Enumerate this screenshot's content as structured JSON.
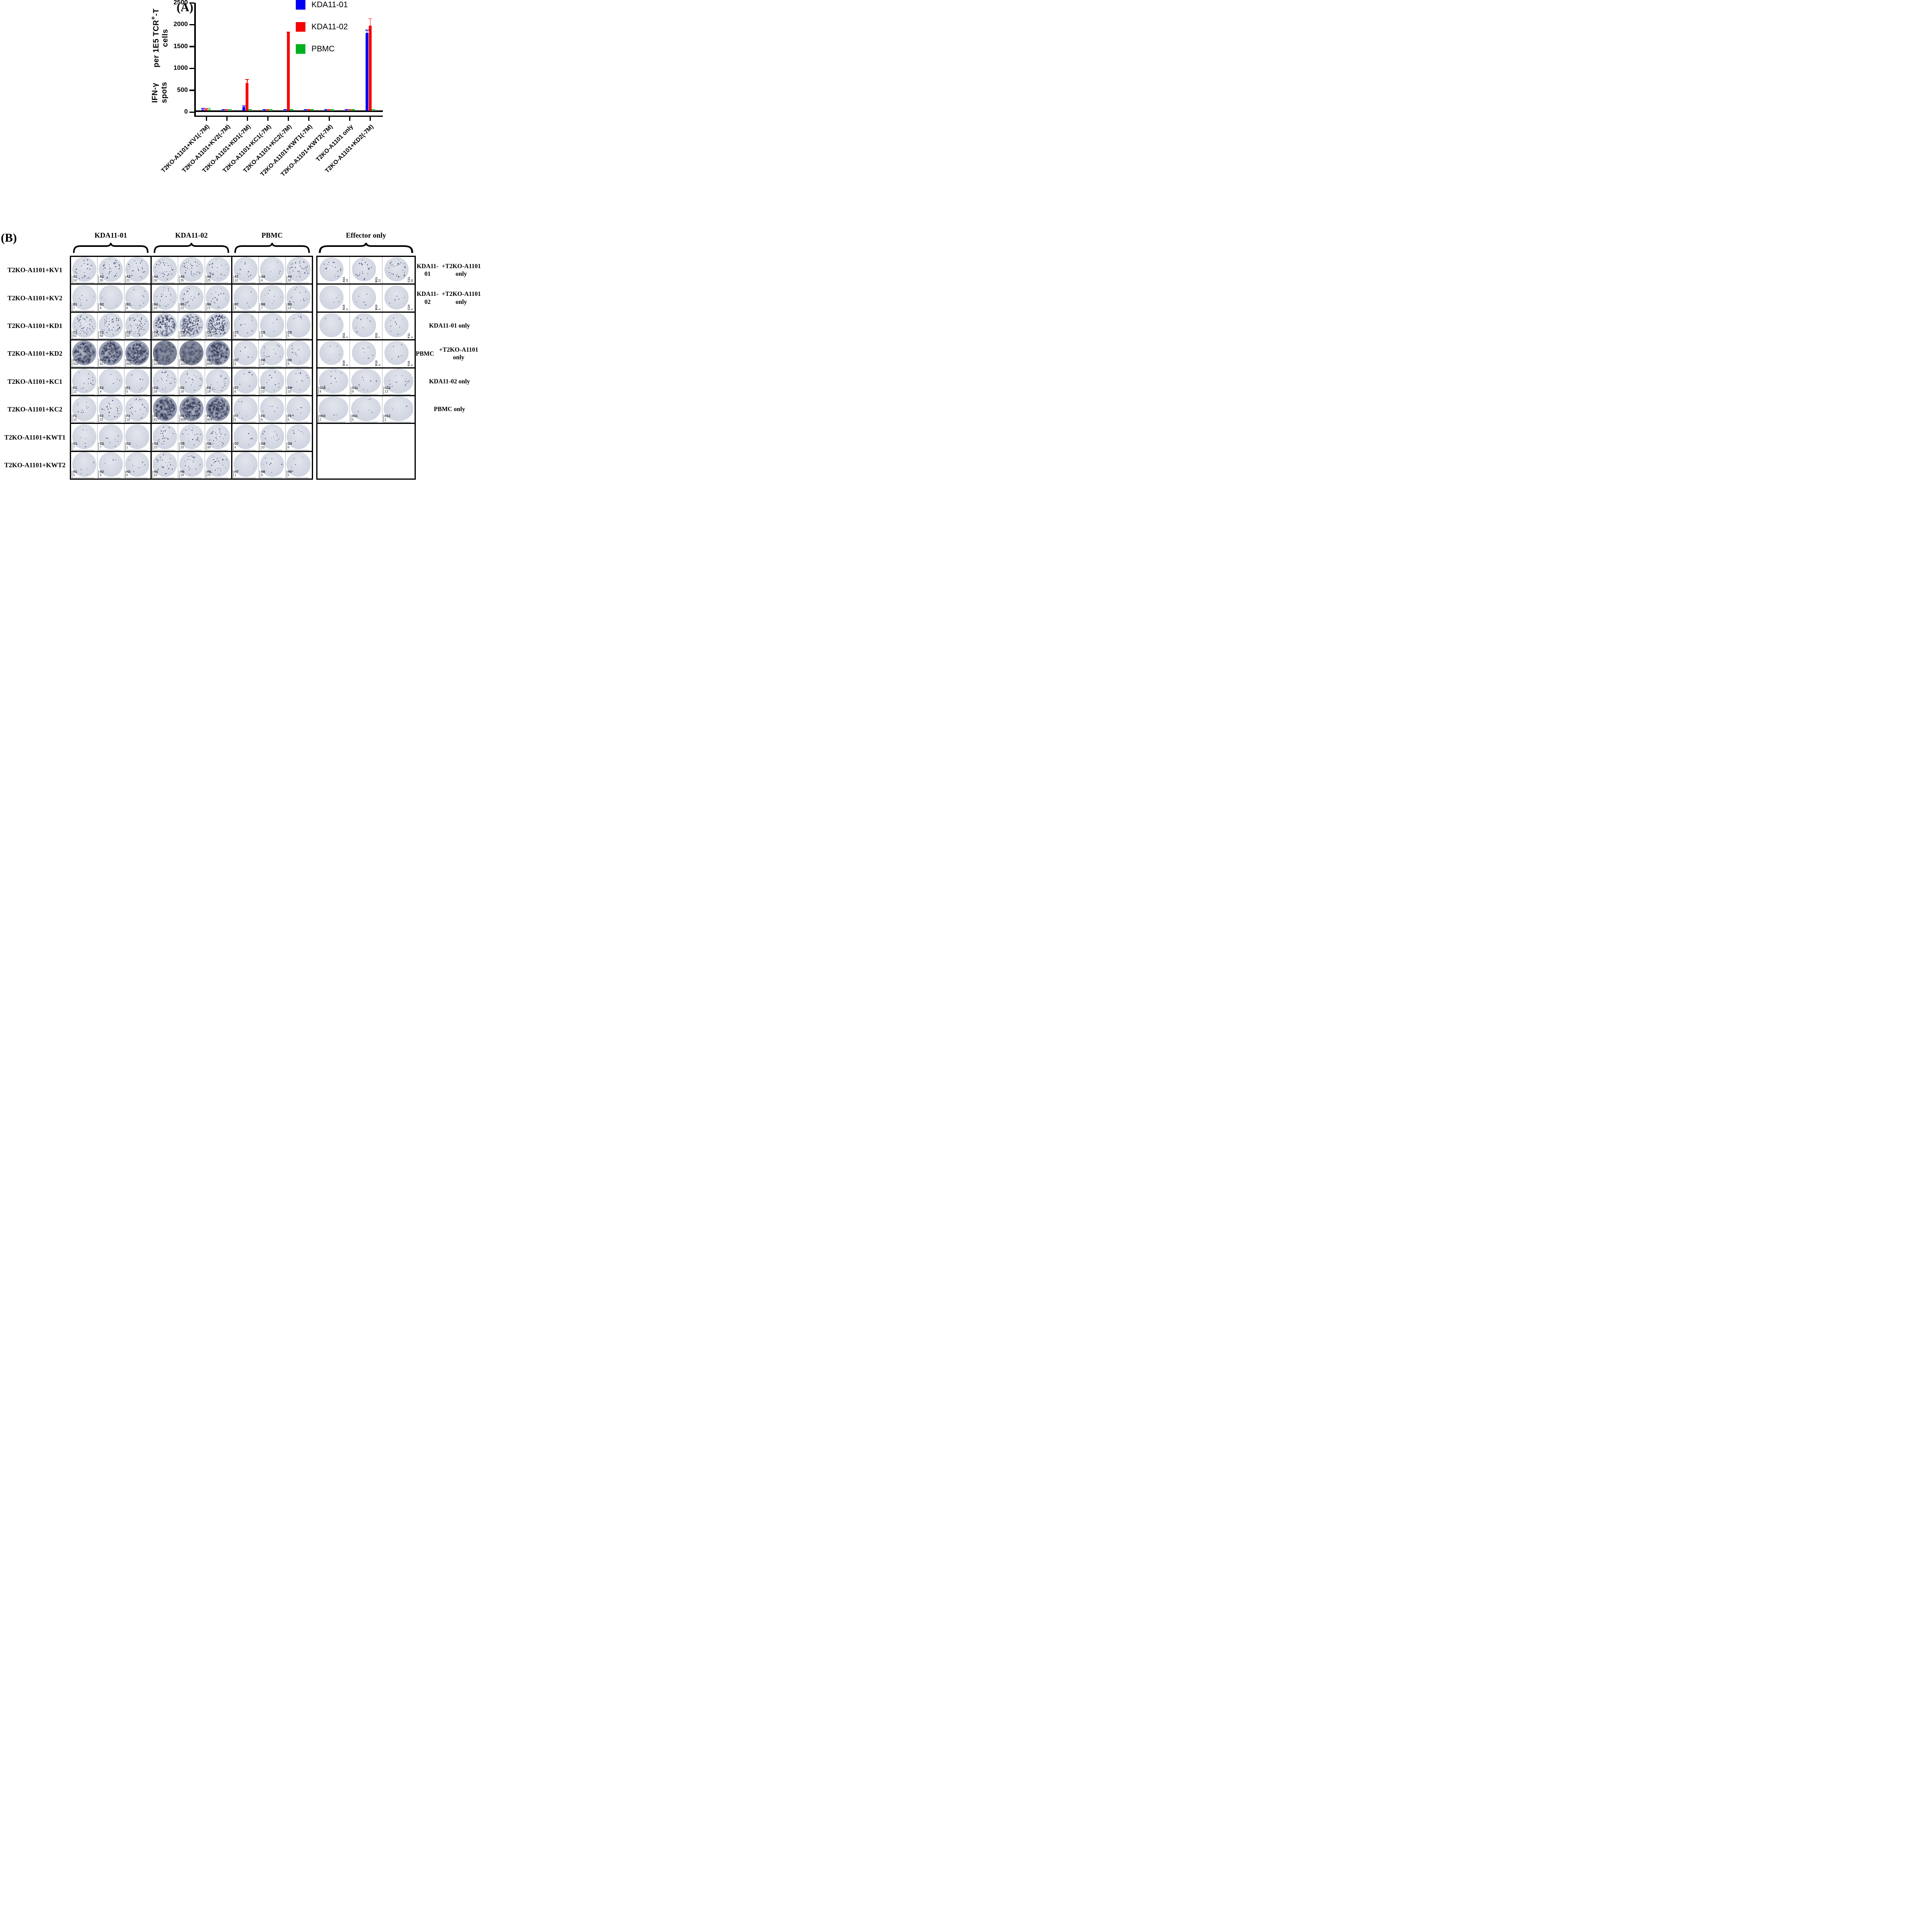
{
  "figure": {
    "panelA": {
      "label": "(A)",
      "ylabel_line1": "IFN-γ spots",
      "ylabel_line2_pre": "per 1E5 TCR",
      "ylabel_line2_sup": "+",
      "ylabel_line2_post": "-T cells",
      "chart_data": {
        "type": "bar",
        "title": "",
        "ylabel": "IFN-γ spots per 1E5 TCR+-T cells",
        "ylim": [
          0,
          2500
        ],
        "yticks": [
          0,
          500,
          1000,
          1500,
          2000,
          2500
        ],
        "grid": false,
        "legend_position": "top-right",
        "categories": [
          "T2KO-A1101+KV1(-7M)",
          "T2KO-A1101+KV2(-7M)",
          "T2KO-A1101+KD1(-7M)",
          "T2KO-A1101+KC1(-7M)",
          "T2KO-A1101+KC2(-7M)",
          "T2KO-A1101+KWT1(-7M)",
          "T2KO-A1101+KWT2(-7M)",
          "T2KO-A1101 only",
          "T2KO-A1101+KD2(-7M)"
        ],
        "series": [
          {
            "name": "KDA11-01",
            "color": "#0000f2",
            "values": [
              30,
              10,
              80,
              12,
              6,
              10,
              6,
              6,
              1780
            ],
            "errors": [
              25,
              6,
              30,
              8,
              4,
              6,
              4,
              4,
              70
            ]
          },
          {
            "name": "KDA11-02",
            "color": "#f60308",
            "values": [
              30,
              6,
              630,
              12,
              1790,
              14,
              8,
              10,
              1950
            ],
            "errors": [
              20,
              4,
              85,
              10,
              15,
              10,
              6,
              8,
              160
            ]
          },
          {
            "name": "PBMC",
            "color": "#00b01f",
            "values": [
              25,
              6,
              10,
              10,
              14,
              16,
              12,
              14,
              10
            ],
            "errors": [
              35,
              5,
              8,
              8,
              10,
              12,
              8,
              10,
              8
            ]
          }
        ]
      }
    },
    "panelB": {
      "label": "(B)",
      "column_groups": [
        "KDA11-01",
        "KDA11-02",
        "PBMC",
        "Effector only"
      ],
      "rows": [
        {
          "label": "T2KO-A1101+KV1",
          "right_label": [
            "KDA11-01",
            "+T2KO-A1101 only"
          ],
          "wells": [
            {
              "id": "A1",
              "count": 24
            },
            {
              "id": "A2",
              "count": 35
            },
            {
              "id": "A3",
              "count": 21
            },
            {
              "id": "A4",
              "count": 30
            },
            {
              "id": "A5",
              "count": 35
            },
            {
              "id": "A6",
              "count": 25
            },
            {
              "id": "A7",
              "count": 10
            },
            {
              "id": "A8",
              "count": 4
            },
            {
              "id": "A9",
              "count": 33
            }
          ],
          "effector_wells": [
            {
              "id": "A11",
              "count": 18
            },
            {
              "id": "B11",
              "count": 22
            },
            {
              "id": "C11",
              "count": 30
            }
          ],
          "effector_label_rotated": true
        },
        {
          "label": "T2KO-A1101+KV2",
          "right_label": [
            "KDA11-02",
            "+T2KO-A1101 only"
          ],
          "wells": [
            {
              "id": "B1",
              "count": 7
            },
            {
              "id": "B2",
              "count": 4
            },
            {
              "id": "B3",
              "count": 8
            },
            {
              "id": "B4",
              "count": 20
            },
            {
              "id": "B5",
              "count": 22
            },
            {
              "id": "B6",
              "count": 21
            },
            {
              "id": "B7",
              "count": 3
            },
            {
              "id": "B8",
              "count": 7
            },
            {
              "id": "B9",
              "count": 13
            }
          ],
          "effector_wells": [
            {
              "id": "A10",
              "count": 4
            },
            {
              "id": "B10",
              "count": 5
            },
            {
              "id": "C10",
              "count": 5
            }
          ],
          "effector_label_rotated": true
        },
        {
          "label": "T2KO-A1101+KD1",
          "right_label": [
            "KDA11-01 only"
          ],
          "wells": [
            {
              "id": "C1",
              "count": 62
            },
            {
              "id": "C2",
              "count": 64
            },
            {
              "id": "C3",
              "count": 50
            },
            {
              "id": "C4",
              "count": 347
            },
            {
              "id": "C5",
              "count": 288
            },
            {
              "id": "C6",
              "count": 364
            },
            {
              "id": "C7",
              "count": 8
            },
            {
              "id": "C8",
              "count": 3
            },
            {
              "id": "C9",
              "count": 5
            }
          ],
          "effector_wells": [
            {
              "id": "D11",
              "count": 2
            },
            {
              "id": "E11",
              "count": 7
            },
            {
              "id": "F11",
              "count": 9
            }
          ],
          "effector_label_rotated": true
        },
        {
          "label": "T2KO-A1101+KD2",
          "right_label": [
            "PBMC",
            "+T2KO-A1101 only"
          ],
          "wells": [
            {
              "id": "D1",
              "count": 910
            },
            {
              "id": "D2",
              "count": 927
            },
            {
              "id": "D3",
              "count": 860
            },
            {
              "id": "D4",
              "count": 1046
            },
            {
              "id": "D5",
              "count": 1027
            },
            {
              "id": "D6",
              "count": 894
            },
            {
              "id": "D7",
              "count": 5
            },
            {
              "id": "D8",
              "count": 12
            },
            {
              "id": "D9",
              "count": 9
            }
          ],
          "effector_wells": [
            {
              "id": "D10",
              "count": 4
            },
            {
              "id": "E10",
              "count": 6
            },
            {
              "id": "F10",
              "count": 5
            }
          ],
          "effector_label_rotated": true
        },
        {
          "label": "T2KO-A1101+KC1",
          "right_label": [
            "KDA11-02 only"
          ],
          "wells": [
            {
              "id": "E1",
              "count": 12
            },
            {
              "id": "E2",
              "count": 4
            },
            {
              "id": "E3",
              "count": 5
            },
            {
              "id": "E4",
              "count": 26
            },
            {
              "id": "E5",
              "count": 16
            },
            {
              "id": "E6",
              "count": 18
            },
            {
              "id": "E7",
              "count": 6
            },
            {
              "id": "E8",
              "count": 10
            },
            {
              "id": "E9",
              "count": 10
            }
          ],
          "effector_wells": [
            {
              "id": "G10",
              "count": 9
            },
            {
              "id": "G11",
              "count": 9
            },
            {
              "id": "G12",
              "count": 13
            }
          ],
          "effector_label_rotated": false
        },
        {
          "label": "T2KO-A1101+KC2",
          "right_label": [
            "PBMC only"
          ],
          "wells": [
            {
              "id": "F1",
              "count": 10
            },
            {
              "id": "F2",
              "count": 22
            },
            {
              "id": "F3",
              "count": 19
            },
            {
              "id": "F4",
              "count": 917
            },
            {
              "id": "F5",
              "count": 909
            },
            {
              "id": "F6",
              "count": 904
            },
            {
              "id": "F7",
              "count": 5
            },
            {
              "id": "F8",
              "count": 6
            },
            {
              "id": "F9",
              "count": 5
            }
          ],
          "effector_wells": [
            {
              "id": "H10",
              "count": 2
            },
            {
              "id": "H11",
              "count": 5
            },
            {
              "id": "H12",
              "count": 2
            }
          ],
          "effector_label_rotated": false
        },
        {
          "label": "T2KO-A1101+KWT1",
          "right_label": [],
          "wells": [
            {
              "id": "G1",
              "count": 7
            },
            {
              "id": "G2",
              "count": 7
            },
            {
              "id": "G3",
              "count": 1
            },
            {
              "id": "G4",
              "count": 23
            },
            {
              "id": "G5",
              "count": 20
            },
            {
              "id": "G6",
              "count": 30
            },
            {
              "id": "G7",
              "count": 4
            },
            {
              "id": "G8",
              "count": 10
            },
            {
              "id": "G9",
              "count": 6
            }
          ],
          "effector_wells": null,
          "effector_label_rotated": false
        },
        {
          "label": "T2KO-A1101+KWT2",
          "right_label": [],
          "wells": [
            {
              "id": "H1",
              "count": 5
            },
            {
              "id": "H2",
              "count": 3
            },
            {
              "id": "H3",
              "count": 6
            },
            {
              "id": "H4",
              "count": 22
            },
            {
              "id": "H5",
              "count": 24
            },
            {
              "id": "H6",
              "count": 25
            },
            {
              "id": "H7",
              "count": 1
            },
            {
              "id": "H8",
              "count": 9
            },
            {
              "id": "H9",
              "count": 5
            }
          ],
          "effector_wells": null,
          "effector_label_rotated": false
        }
      ]
    }
  }
}
